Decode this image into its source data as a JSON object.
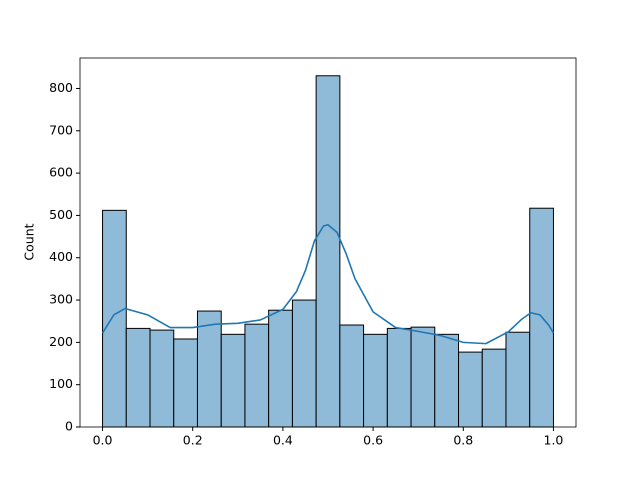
{
  "chart_data": {
    "type": "histogram",
    "ylabel": "Count",
    "bins": [
      0,
      0.0526,
      0.1053,
      0.1579,
      0.2105,
      0.2632,
      0.3158,
      0.3684,
      0.4211,
      0.4737,
      0.5263,
      0.5789,
      0.6316,
      0.6842,
      0.7368,
      0.7895,
      0.8421,
      0.8947,
      0.9474,
      1
    ],
    "values": [
      512,
      233,
      229,
      208,
      274,
      219,
      243,
      276,
      300,
      830,
      241,
      219,
      233,
      236,
      219,
      177,
      184,
      224,
      517
    ],
    "color": "#8fbbd9",
    "edgecolor": "#000000",
    "kde": {
      "color": "#1f77b4",
      "x": [
        0,
        0.025,
        0.05,
        0.1,
        0.15,
        0.2,
        0.25,
        0.3,
        0.35,
        0.4,
        0.43,
        0.45,
        0.47,
        0.49,
        0.5,
        0.52,
        0.54,
        0.56,
        0.6,
        0.65,
        0.7,
        0.75,
        0.8,
        0.85,
        0.9,
        0.93,
        0.95,
        0.97,
        0.99,
        1
      ],
      "values": [
        222,
        265,
        280,
        265,
        235,
        235,
        243,
        245,
        253,
        278,
        320,
        370,
        440,
        475,
        478,
        460,
        410,
        350,
        272,
        235,
        226,
        216,
        200,
        197,
        225,
        255,
        270,
        265,
        240,
        222
      ]
    },
    "xlim": [
      -0.05,
      1.05
    ],
    "ylim": [
      0,
      872
    ],
    "xticks": [
      {
        "value": 0,
        "label": "0.0"
      },
      0.2,
      0.4,
      0.6,
      0.8,
      {
        "value": 1,
        "label": "1.0"
      }
    ],
    "yticks": [
      0,
      100,
      200,
      300,
      400,
      500,
      600,
      700,
      800
    ]
  }
}
